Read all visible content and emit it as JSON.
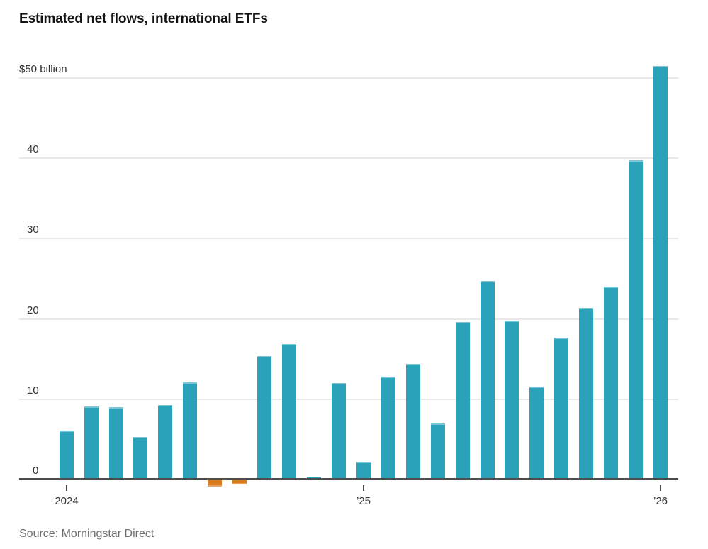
{
  "chart_data": {
    "type": "bar",
    "title": "Estimated net flows, international ETFs",
    "source": "Source: Morningstar Direct",
    "unit_label": "$50 billion",
    "categories": [
      "Jan 2024",
      "Feb 2024",
      "Mar 2024",
      "Apr 2024",
      "May 2024",
      "Jun 2024",
      "Jul 2024",
      "Aug 2024",
      "Sep 2024",
      "Oct 2024",
      "Nov 2024",
      "Dec 2024",
      "Jan 2025",
      "Feb 2025",
      "Mar 2025",
      "Apr 2025",
      "May 2025",
      "Jun 2025",
      "Jul 2025",
      "Aug 2025",
      "Sep 2025",
      "Oct 2025",
      "Nov 2025",
      "Dec 2025",
      "Jan 2026"
    ],
    "values": [
      6.2,
      9.2,
      9.1,
      5.4,
      9.4,
      12.2,
      -0.8,
      -0.5,
      15.5,
      17.0,
      0.4,
      12.1,
      2.3,
      12.9,
      14.5,
      7.1,
      19.7,
      24.8,
      19.9,
      11.7,
      17.8,
      21.5,
      24.1,
      39.8,
      51.6
    ],
    "y_ticks": [
      {
        "value": 50,
        "label": "$50 billion"
      },
      {
        "value": 40,
        "label": "40"
      },
      {
        "value": 30,
        "label": "30"
      },
      {
        "value": 20,
        "label": "20"
      },
      {
        "value": 10,
        "label": "10"
      },
      {
        "value": 0,
        "label": "0"
      }
    ],
    "x_ticks": [
      {
        "index": 0,
        "label": "2024"
      },
      {
        "index": 12,
        "label": "’25"
      },
      {
        "index": 24,
        "label": "’26"
      }
    ],
    "ylim": [
      -1,
      52
    ],
    "grid": true,
    "legend": "none",
    "colors": {
      "positive_bar": "#2AA3BA",
      "negative_bar": "#D87C1E",
      "axis": "#4D4D4D",
      "gridline": "#E9E9E9",
      "title_text": "#141414",
      "tick_label": "#333333",
      "source_text": "#6E6E6E"
    }
  }
}
